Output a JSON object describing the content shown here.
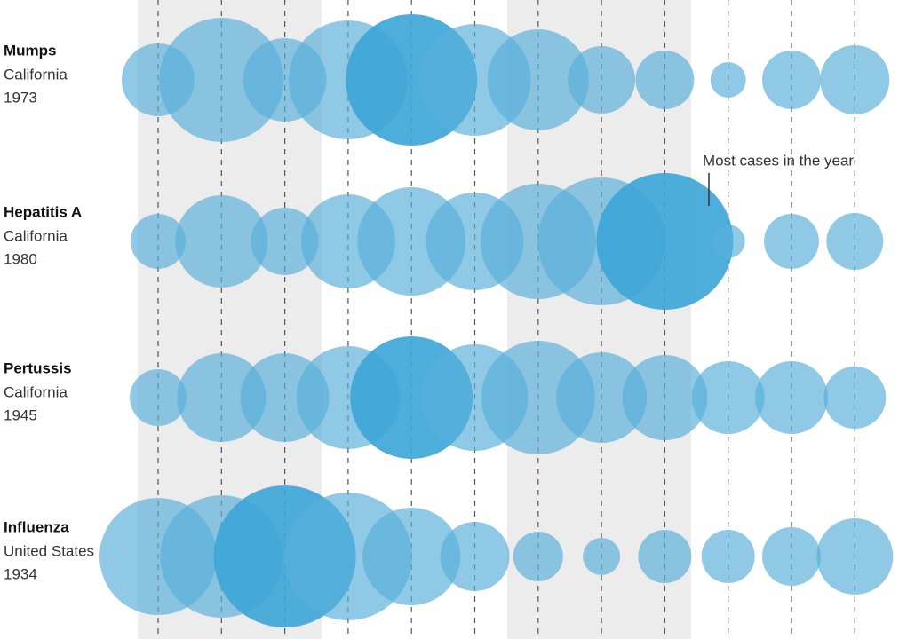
{
  "chart_data": {
    "type": "bubble",
    "categories": [
      null,
      null,
      null,
      null,
      null,
      null,
      null,
      null,
      null,
      null,
      null,
      null
    ],
    "color": "#5aafda",
    "highlight_color": "#3ea6d8",
    "series": [
      {
        "name": "Mumps",
        "place": "California",
        "year": "1973",
        "values": [
          41,
          70,
          47,
          67,
          74,
          63,
          57,
          38,
          33,
          20,
          33,
          39
        ]
      },
      {
        "name": "Hepatitis A",
        "place": "California",
        "year": "1980",
        "values": [
          31,
          52,
          38,
          53,
          61,
          55,
          65,
          72,
          77,
          19,
          31,
          32
        ]
      },
      {
        "name": "Pertussis",
        "place": "California",
        "year": "1945",
        "values": [
          32,
          50,
          50,
          58,
          69,
          60,
          64,
          51,
          48,
          41,
          41,
          35
        ]
      },
      {
        "name": "Influenza",
        "place": "United States",
        "year": "1934",
        "values": [
          66,
          69,
          80,
          72,
          55,
          39,
          28,
          21,
          30,
          30,
          33,
          43
        ]
      }
    ],
    "annotation": "Most cases in the year"
  }
}
